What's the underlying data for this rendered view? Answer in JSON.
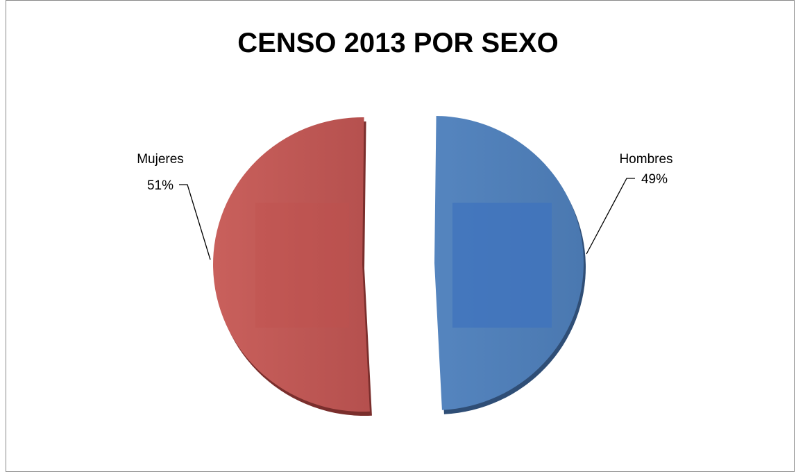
{
  "chart_data": {
    "type": "pie",
    "title": "CENSO 2013 POR SEXO",
    "slices": [
      {
        "name": "Mujeres",
        "value": 51,
        "label": "51%",
        "color": "#C0504D"
      },
      {
        "name": "Hombres",
        "value": 49,
        "label": "49%",
        "color": "#4F81BD"
      }
    ],
    "exploded": true,
    "legend": "none"
  }
}
